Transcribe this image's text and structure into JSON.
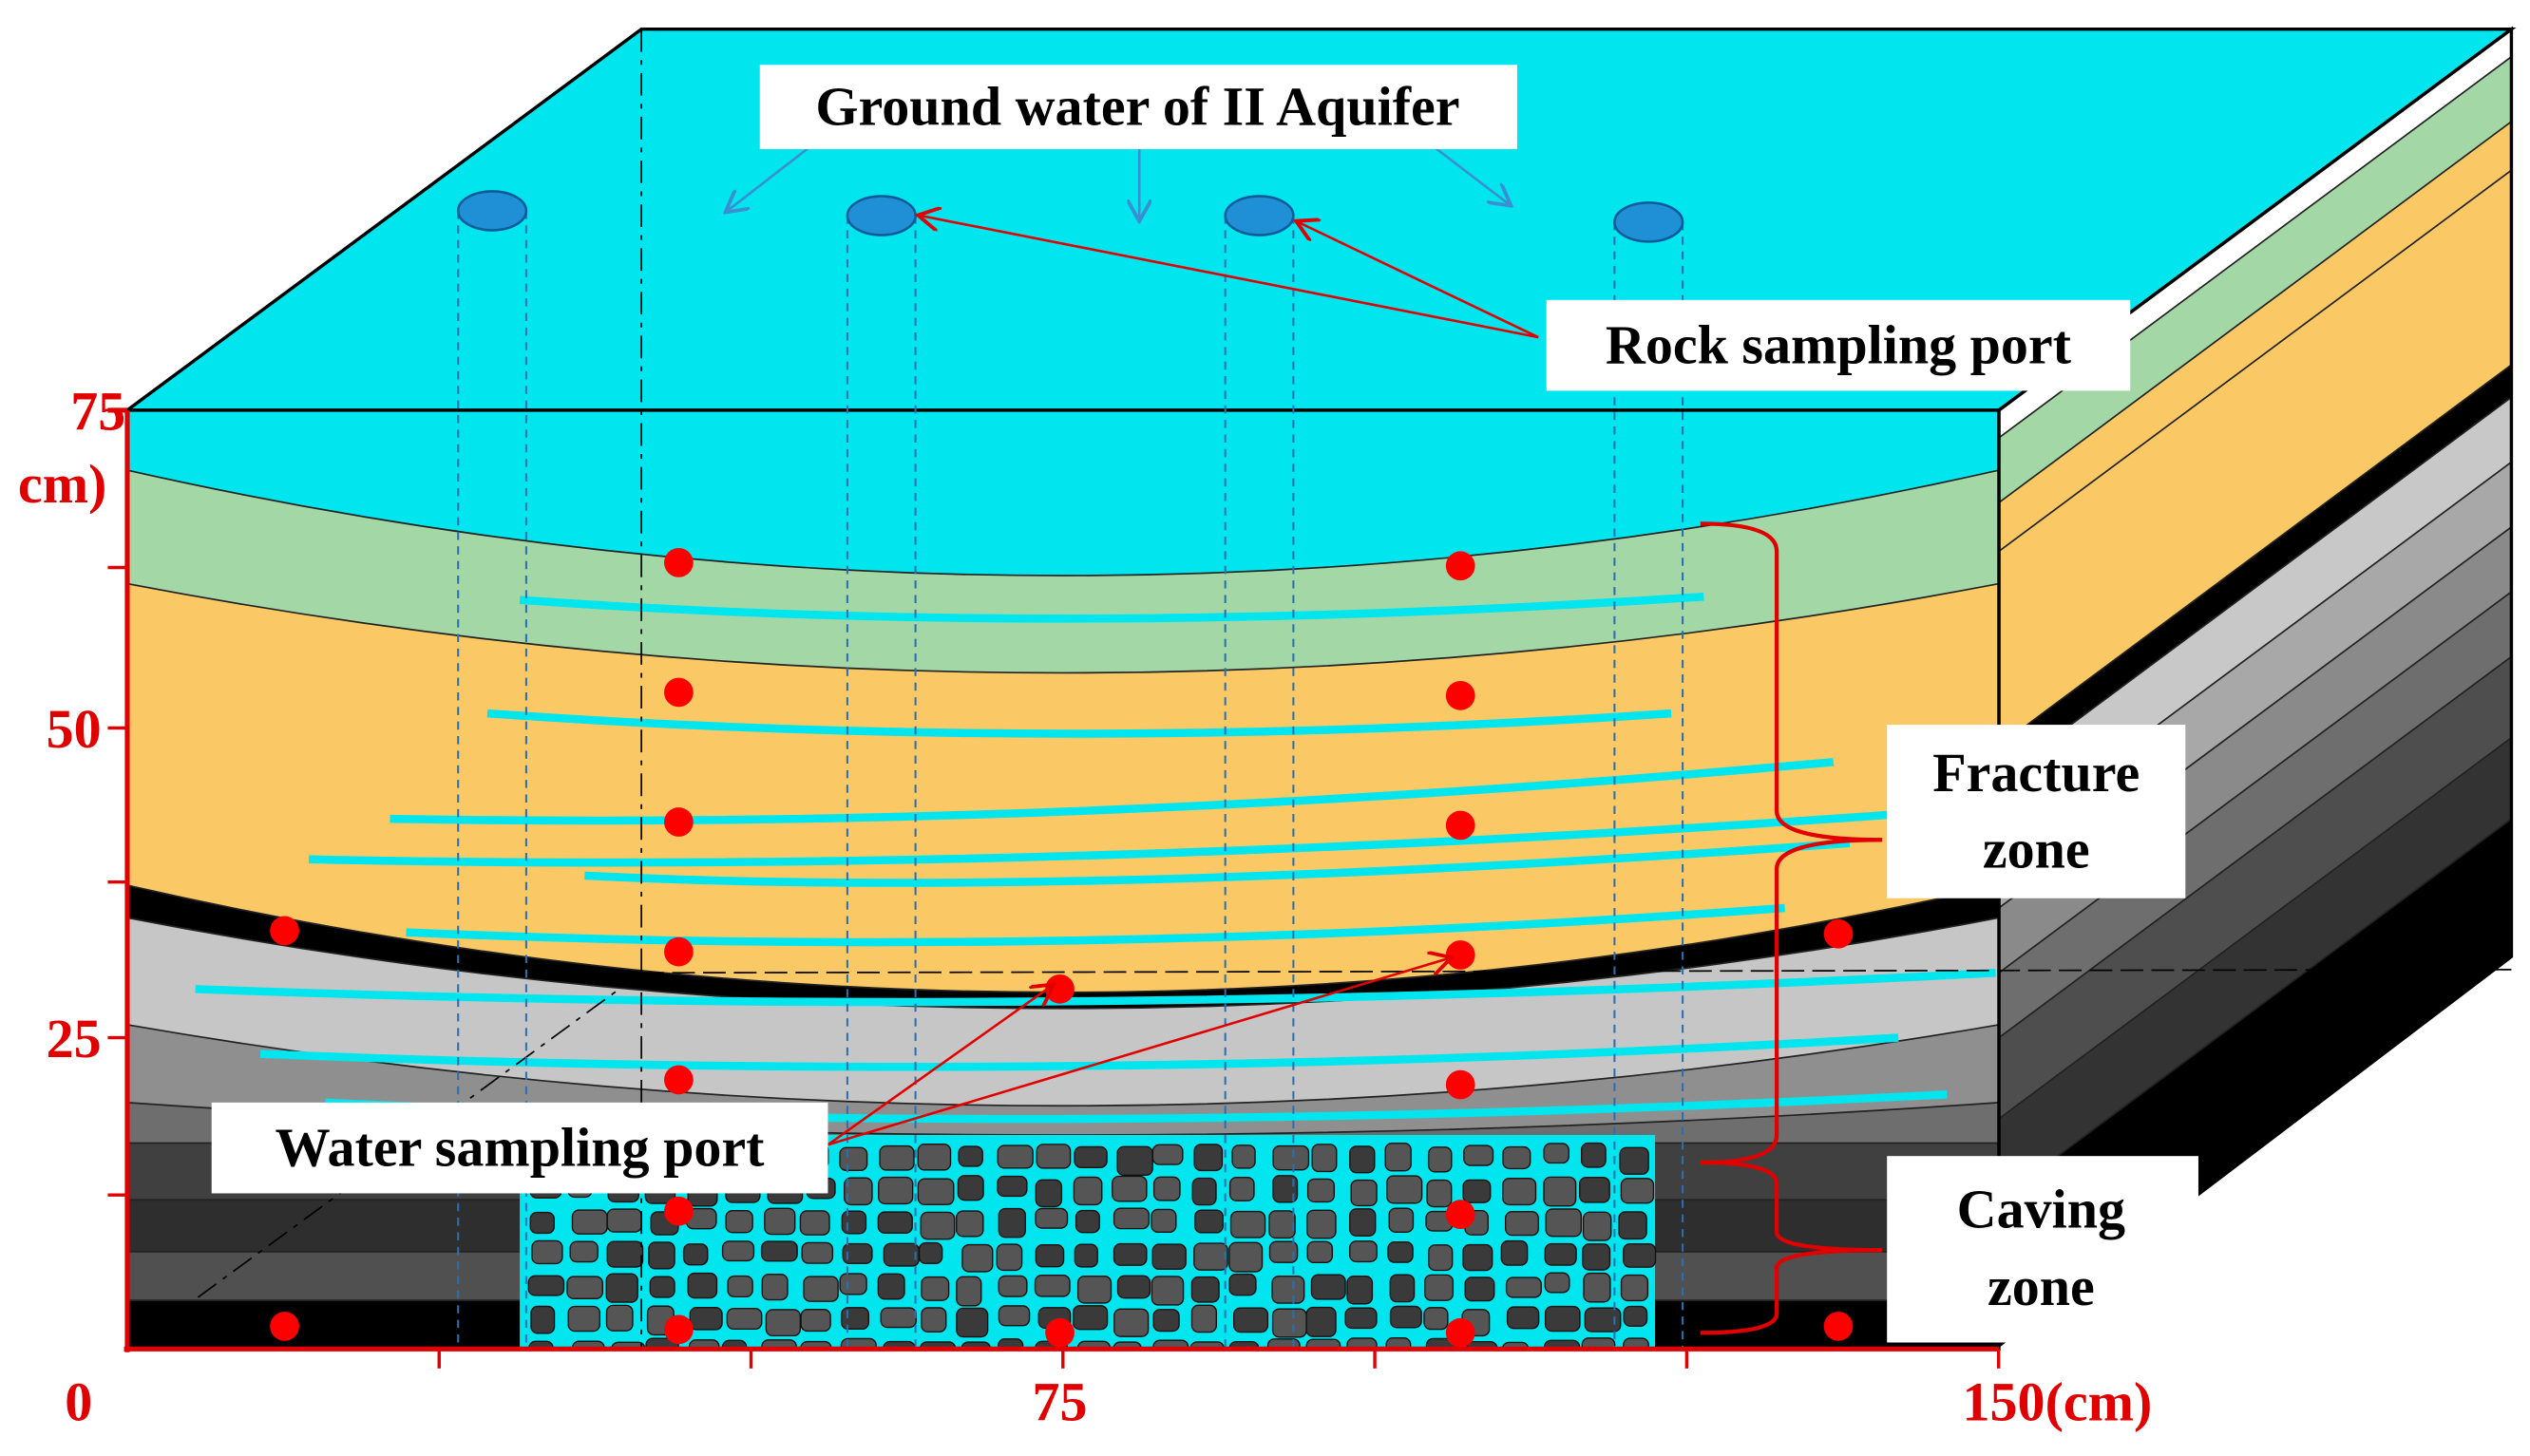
{
  "labels": {
    "groundwater": "Ground water of II Aquifer",
    "rock_port": "Rock sampling port",
    "fracture_zone": [
      "Fracture",
      "zone"
    ],
    "caving_zone": [
      "Caving",
      "zone"
    ],
    "water_port": "Water sampling port"
  },
  "axes": {
    "y_top": "75",
    "y_unit": "cm)",
    "y_50": "50",
    "y_25": "25",
    "origin": "0",
    "x_mid": "75",
    "x_end": "150(cm)"
  }
}
